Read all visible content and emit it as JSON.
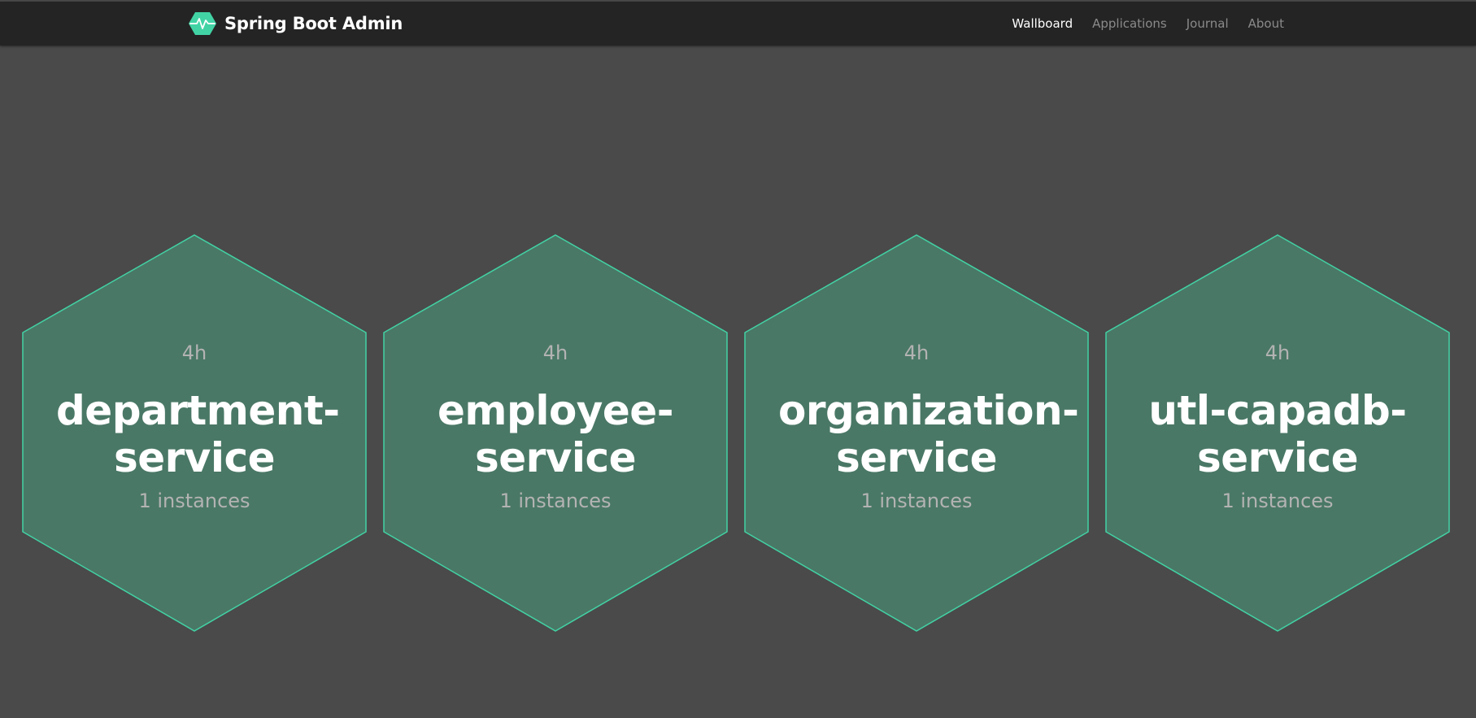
{
  "brand": {
    "name": "Spring Boot Admin",
    "logo_icon": "heartbeat-hexagon-icon",
    "accent_color": "#42d3a5"
  },
  "nav": {
    "items": [
      {
        "label": "Wallboard",
        "active": true
      },
      {
        "label": "Applications",
        "active": false
      },
      {
        "label": "Journal",
        "active": false
      },
      {
        "label": "About",
        "active": false
      }
    ]
  },
  "wallboard": {
    "tile_fill": "#4a7866",
    "tile_stroke": "#42d3a5",
    "applications": [
      {
        "uptime": "4h",
        "name_line1": "department-",
        "name_line2": "service",
        "instances": "1 instances"
      },
      {
        "uptime": "4h",
        "name_line1": "employee-",
        "name_line2": "service",
        "instances": "1 instances"
      },
      {
        "uptime": "4h",
        "name_line1": "organization-",
        "name_line2": "service",
        "instances": "1 instances"
      },
      {
        "uptime": "4h",
        "name_line1": "utl-capadb-",
        "name_line2": "service",
        "instances": "1 instances"
      }
    ]
  }
}
